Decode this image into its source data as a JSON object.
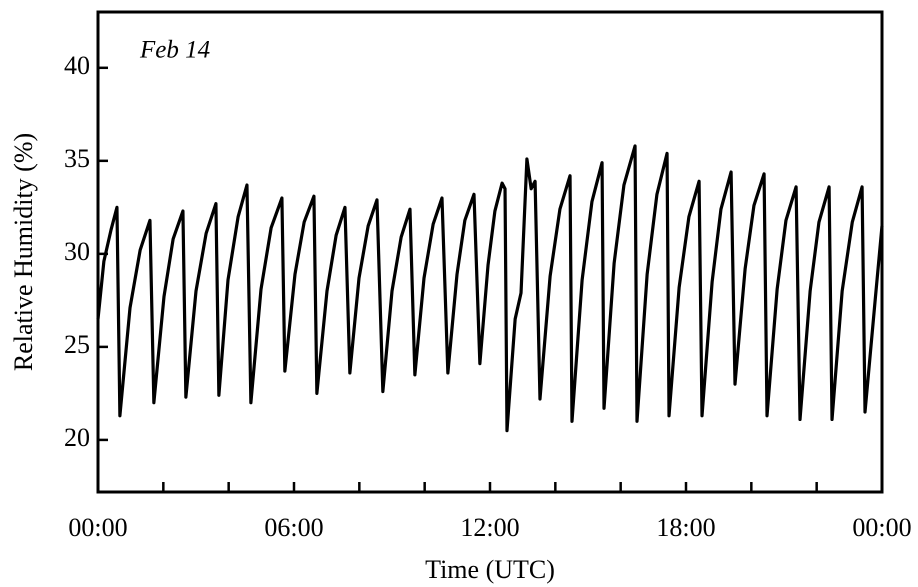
{
  "chart_data": {
    "type": "line",
    "annotation": "Feb 14",
    "xlabel": "Time (UTC)",
    "ylabel": "Relative Humidity (%)",
    "color": "#000000",
    "xlim": [
      0,
      24
    ],
    "ylim": [
      17.2,
      43
    ],
    "xticks": [
      {
        "value": 0,
        "label": "00:00"
      },
      {
        "value": 6,
        "label": "06:00"
      },
      {
        "value": 12,
        "label": "12:00"
      },
      {
        "value": 18,
        "label": "18:00"
      },
      {
        "value": 24,
        "label": "00:00"
      }
    ],
    "xminorticks": [
      2,
      4,
      8,
      10,
      14,
      16,
      20,
      22
    ],
    "yticks": [
      20,
      25,
      30,
      35,
      40
    ],
    "x": [
      0.0,
      0.18,
      0.4,
      0.58,
      0.67,
      0.98,
      1.29,
      1.59,
      1.71,
      2.02,
      2.3,
      2.6,
      2.69,
      3.0,
      3.31,
      3.61,
      3.7,
      3.98,
      4.29,
      4.56,
      4.68,
      4.99,
      5.3,
      5.63,
      5.72,
      6.03,
      6.31,
      6.61,
      6.7,
      7.01,
      7.29,
      7.56,
      7.71,
      7.99,
      8.27,
      8.54,
      8.72,
      9.0,
      9.28,
      9.55,
      9.7,
      9.98,
      10.26,
      10.53,
      10.71,
      10.99,
      11.23,
      11.51,
      11.69,
      11.94,
      12.15,
      12.37,
      12.46,
      12.52,
      12.77,
      12.95,
      13.13,
      13.26,
      13.38,
      13.53,
      13.84,
      14.14,
      14.45,
      14.51,
      14.82,
      15.12,
      15.43,
      15.49,
      15.8,
      16.1,
      16.44,
      16.5,
      16.81,
      17.11,
      17.42,
      17.48,
      17.79,
      18.09,
      18.4,
      18.49,
      18.8,
      19.07,
      19.38,
      19.5,
      19.81,
      20.08,
      20.39,
      20.48,
      20.79,
      21.06,
      21.37,
      21.49,
      21.8,
      22.07,
      22.38,
      22.47,
      22.78,
      23.09,
      23.39,
      23.48,
      23.79,
      24.0
    ],
    "values": [
      26.5,
      29.6,
      31.3,
      32.5,
      21.3,
      27.1,
      30.2,
      31.8,
      22.0,
      27.7,
      30.8,
      32.3,
      22.3,
      28.0,
      31.1,
      32.7,
      22.4,
      28.6,
      32.0,
      33.7,
      22.0,
      28.1,
      31.4,
      33.0,
      23.7,
      28.9,
      31.7,
      33.1,
      22.5,
      28.0,
      31.0,
      32.5,
      23.6,
      28.7,
      31.5,
      32.9,
      22.6,
      28.0,
      30.9,
      32.4,
      23.5,
      28.7,
      31.6,
      33.0,
      23.6,
      28.9,
      31.8,
      33.2,
      24.1,
      29.4,
      32.3,
      33.8,
      33.5,
      20.5,
      26.5,
      27.9,
      35.1,
      33.5,
      33.9,
      22.2,
      28.8,
      32.4,
      34.2,
      21.0,
      28.6,
      32.8,
      34.9,
      21.7,
      29.5,
      33.7,
      35.8,
      21.0,
      28.9,
      33.2,
      35.4,
      21.3,
      28.2,
      32.0,
      33.9,
      21.3,
      28.5,
      32.4,
      34.4,
      23.0,
      29.2,
      32.6,
      34.3,
      21.3,
      28.1,
      31.8,
      33.6,
      21.1,
      28.0,
      31.7,
      33.6,
      21.1,
      28.0,
      31.7,
      33.6,
      21.5,
      27.5,
      31.5
    ]
  }
}
